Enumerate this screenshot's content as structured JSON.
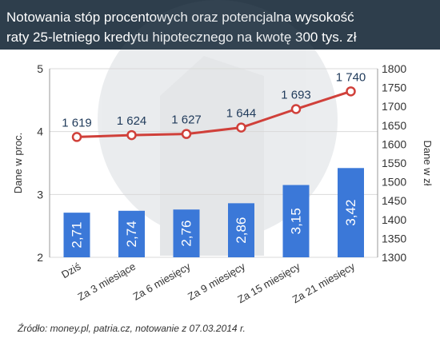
{
  "header": {
    "title_line1": "Notowania stóp procentowych oraz potencjalna wysokość",
    "title_line2": "raty 25-letniego kredytu hipotecznego na kwotę 300 tys. zł"
  },
  "source": "Źródło: money.pl, patria.cz, notowanie z 07.03.2014 r.",
  "colors": {
    "header_bg": "#2E3E4C",
    "bar": "#3B78D8",
    "line": "#D0403A",
    "axis_text": "#333333",
    "grid": "#d9d9d9"
  },
  "chart_data": {
    "type": "bar",
    "categories": [
      "Dziś",
      "Za 3 miesiące",
      "Za 6 miesięcy",
      "Za 9 miesięcy",
      "Za 15 miesięcy",
      "Za 21 miesięcy"
    ],
    "series": [
      {
        "type": "bar",
        "axis": "left",
        "values": [
          2.71,
          2.74,
          2.76,
          2.86,
          3.15,
          3.42
        ],
        "labels": [
          "2,71",
          "2,74",
          "2,76",
          "2,86",
          "3,15",
          "3,42"
        ]
      },
      {
        "type": "line",
        "axis": "right",
        "values": [
          1619,
          1624,
          1627,
          1644,
          1693,
          1740
        ],
        "labels": [
          "1 619",
          "1 624",
          "1 627",
          "1 644",
          "1 693",
          "1 740"
        ]
      }
    ],
    "ylabel": "Dane w proc.",
    "ylabel_right": "Dane w zł",
    "ylim": [
      2,
      5
    ],
    "yticks": [
      "2",
      "3",
      "4",
      "5"
    ],
    "ylim_right": [
      1300,
      1800
    ],
    "yticks_right": [
      "1300",
      "1350",
      "1400",
      "1450",
      "1500",
      "1550",
      "1600",
      "1650",
      "1700",
      "1750",
      "1800"
    ],
    "grid": true,
    "legend": "none"
  }
}
